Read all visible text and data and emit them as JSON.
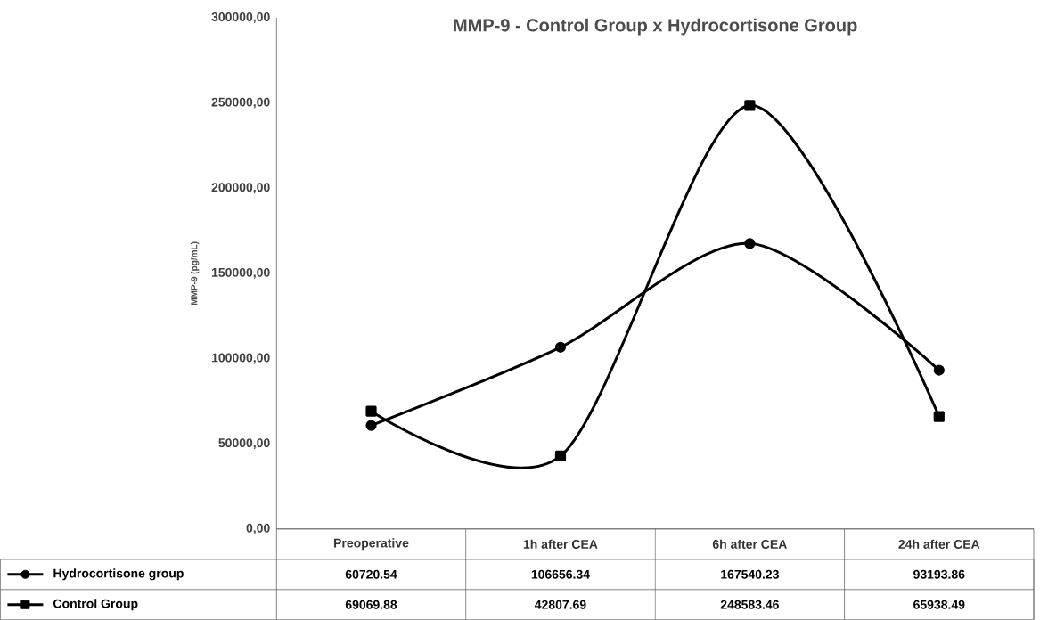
{
  "chart_data": {
    "type": "line",
    "title": "MMP-9 - Control Group x Hydrocortisone Group",
    "ylabel": "MMP-9 (pg/mL)",
    "categories": [
      "Preoperative",
      "1h after CEA",
      "6h after CEA",
      "24h after CEA"
    ],
    "series": [
      {
        "name": "Hydrocortisone group",
        "color": "#000000",
        "marker": "circle",
        "values": [
          60720.54,
          106656.34,
          167540.23,
          93193.86
        ],
        "value_labels": [
          "60720.54",
          "106656.34",
          "167540.23",
          "93193.86"
        ]
      },
      {
        "name": "Control Group",
        "color": "#000000",
        "marker": "square",
        "values": [
          69069.88,
          42807.69,
          248583.46,
          65938.49
        ],
        "value_labels": [
          "69069.88",
          "42807.69",
          "248583.46",
          "65938.49"
        ]
      }
    ],
    "ylim": [
      0,
      300000
    ],
    "yticks": [
      {
        "value": 0,
        "label": "0,00"
      },
      {
        "value": 50000,
        "label": "50000,00"
      },
      {
        "value": 100000,
        "label": "100000,00"
      },
      {
        "value": 150000,
        "label": "150000,00"
      },
      {
        "value": 200000,
        "label": "200000,00"
      },
      {
        "value": 250000,
        "label": "250000,00"
      },
      {
        "value": 300000,
        "label": "300000,00"
      }
    ],
    "legend": "bottom",
    "line_style": "solid",
    "grid": false
  }
}
